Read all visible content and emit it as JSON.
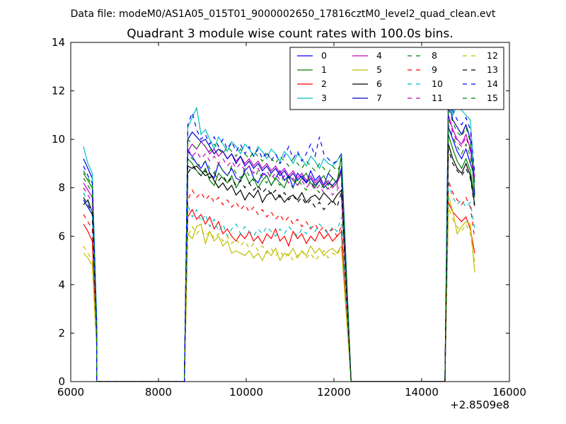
{
  "chart_data": {
    "type": "line",
    "suptitle": "Data file: modeM0/AS1A05_015T01_9000002650_17816cztM0_level2_quad_clean.evt",
    "title": "Quadrant 3 module wise count rates with 100.0s bins.",
    "xlabel": "",
    "ylabel": "",
    "xlim": [
      6000,
      16000
    ],
    "ylim": [
      0,
      14
    ],
    "x_offset_label": "+2.8509e8",
    "xticks": [
      6000,
      8000,
      10000,
      12000,
      14000,
      16000
    ],
    "yticks": [
      0,
      2,
      4,
      6,
      8,
      10,
      12,
      14
    ],
    "grid": false,
    "legend": {
      "location": "top-right",
      "columns": 4
    },
    "segments": [
      {
        "start": 6290,
        "step": 100,
        "count": 4,
        "drop_to_zero_at": 6590
      },
      {
        "start": 8670,
        "step": 100,
        "count": 36,
        "rise_from_zero_at": 8590,
        "drop_to_zero_at": 12390
      },
      {
        "start": 14610,
        "step": 100,
        "count": 7,
        "rise_from_zero_at": 14530
      }
    ],
    "zero_x": [
      6590,
      6700,
      6800,
      6900,
      7000,
      7100,
      7200,
      7300,
      7400,
      7500,
      7600,
      7700,
      7800,
      7900,
      8000,
      8100,
      8200,
      8300,
      8400,
      8500,
      8590,
      12390,
      12500,
      12600,
      12700,
      12800,
      12900,
      13000,
      13100,
      13200,
      13300,
      13400,
      13500,
      13600,
      13700,
      13800,
      13900,
      14000,
      14100,
      14200,
      14300,
      14400,
      14530
    ],
    "series": [
      {
        "name": "0",
        "color": "#0000ff",
        "dash": "solid",
        "y1": [
          9.2,
          8.8,
          8.4,
          2.5
        ],
        "y2": [
          9.5,
          9.3,
          9.0,
          8.8,
          9.1,
          8.6,
          8.4,
          9.0,
          8.7,
          8.5,
          8.8,
          8.4,
          8.3,
          8.7,
          8.9,
          8.4,
          8.2,
          8.6,
          8.5,
          8.1,
          8.4,
          8.7,
          8.3,
          8.5,
          8.0,
          8.6,
          8.4,
          8.2,
          8.7,
          8.3,
          8.5,
          8.1,
          8.6,
          8.4,
          8.2,
          8.8
        ],
        "y3": [
          10.5,
          10.0,
          9.5,
          9.2,
          9.6,
          9.0,
          8.5
        ]
      },
      {
        "name": "1",
        "color": "#008000",
        "dash": "solid",
        "y1": [
          8.6,
          8.3,
          8.0,
          2.2
        ],
        "y2": [
          9.2,
          9.0,
          8.7,
          8.5,
          8.8,
          8.3,
          8.1,
          8.6,
          8.4,
          8.2,
          8.5,
          8.0,
          8.3,
          8.6,
          8.2,
          8.4,
          8.0,
          8.3,
          8.5,
          8.1,
          8.4,
          8.2,
          8.0,
          8.5,
          8.3,
          8.1,
          8.4,
          8.6,
          8.2,
          8.0,
          8.3,
          8.5,
          8.1,
          8.4,
          8.2,
          9.3
        ],
        "y3": [
          10.2,
          9.6,
          9.1,
          8.8,
          9.2,
          8.7,
          7.6
        ]
      },
      {
        "name": "2",
        "color": "#ff0000",
        "dash": "solid",
        "y1": [
          6.5,
          6.2,
          5.8,
          1.8
        ],
        "y2": [
          6.8,
          7.1,
          6.7,
          6.9,
          6.5,
          6.8,
          6.3,
          6.6,
          6.1,
          6.3,
          6.0,
          5.8,
          6.1,
          5.9,
          6.2,
          5.8,
          6.0,
          5.7,
          6.1,
          5.9,
          6.3,
          5.8,
          6.0,
          5.6,
          6.2,
          5.9,
          6.1,
          5.7,
          6.0,
          5.8,
          6.2,
          5.9,
          6.1,
          5.8,
          6.0,
          6.2
        ],
        "y3": [
          7.4,
          7.0,
          6.8,
          6.6,
          6.8,
          6.3,
          5.3
        ]
      },
      {
        "name": "3",
        "color": "#00bfbf",
        "dash": "solid",
        "y1": [
          9.7,
          9.0,
          8.6,
          2.6
        ],
        "y2": [
          10.5,
          10.9,
          11.3,
          10.2,
          10.4,
          10.0,
          9.6,
          10.1,
          9.8,
          9.5,
          9.9,
          9.7,
          9.4,
          9.8,
          9.6,
          9.3,
          9.7,
          9.5,
          9.2,
          9.6,
          9.4,
          9.1,
          9.5,
          9.3,
          9.0,
          9.4,
          9.2,
          8.9,
          9.3,
          9.1,
          8.8,
          9.2,
          9.0,
          8.9,
          9.1,
          9.4
        ],
        "y3": [
          12.2,
          11.0,
          11.4,
          11.2,
          11.0,
          10.8,
          8.2
        ]
      },
      {
        "name": "4",
        "color": "#bf00bf",
        "dash": "solid",
        "y1": [
          8.2,
          7.9,
          7.6,
          2.1
        ],
        "y2": [
          9.5,
          9.8,
          9.6,
          9.9,
          9.7,
          9.4,
          9.6,
          9.3,
          9.5,
          9.2,
          9.4,
          9.1,
          9.3,
          9.0,
          9.2,
          8.9,
          9.1,
          8.8,
          9.0,
          8.7,
          8.9,
          8.6,
          8.8,
          8.5,
          8.7,
          8.4,
          8.6,
          8.3,
          8.5,
          8.2,
          8.4,
          8.1,
          8.3,
          8.0,
          8.2,
          8.6
        ],
        "y3": [
          11.0,
          10.4,
          10.0,
          9.8,
          10.2,
          9.6,
          8.4
        ]
      },
      {
        "name": "5",
        "color": "#bfbf00",
        "dash": "solid",
        "y1": [
          5.3,
          5.1,
          4.8,
          1.4
        ],
        "y2": [
          6.1,
          5.9,
          6.4,
          6.5,
          5.7,
          6.2,
          5.8,
          6.0,
          5.6,
          5.8,
          5.3,
          5.4,
          5.3,
          5.2,
          5.4,
          5.1,
          5.3,
          5.0,
          5.4,
          5.2,
          5.5,
          5.0,
          5.3,
          5.2,
          5.5,
          5.1,
          5.4,
          5.2,
          5.6,
          5.3,
          5.5,
          5.2,
          5.4,
          5.5,
          5.3,
          5.6
        ],
        "y3": [
          7.7,
          7.0,
          6.1,
          6.4,
          6.6,
          6.5,
          4.5
        ]
      },
      {
        "name": "6",
        "color": "#000000",
        "dash": "solid",
        "y1": [
          7.3,
          7.5,
          7.0,
          2.0
        ],
        "y2": [
          8.9,
          8.8,
          8.9,
          8.7,
          8.5,
          8.6,
          8.3,
          8.0,
          8.2,
          7.9,
          8.1,
          7.7,
          7.9,
          7.5,
          7.8,
          7.6,
          7.9,
          7.4,
          7.7,
          7.8,
          7.5,
          7.7,
          7.4,
          7.6,
          7.7,
          7.5,
          7.8,
          7.4,
          7.6,
          7.7,
          7.5,
          7.8,
          7.6,
          7.4,
          7.7,
          7.9
        ],
        "y3": [
          9.8,
          9.2,
          8.8,
          8.6,
          9.0,
          8.5,
          7.3
        ]
      },
      {
        "name": "7",
        "color": "#0000bf",
        "dash": "solid",
        "y1": [
          7.5,
          7.2,
          6.9,
          1.9
        ],
        "y2": [
          10.0,
          10.3,
          10.1,
          9.9,
          10.0,
          9.7,
          9.4,
          9.6,
          9.5,
          9.2,
          9.4,
          9.0,
          9.3,
          8.9,
          9.1,
          8.8,
          9.0,
          8.7,
          8.9,
          8.6,
          8.8,
          8.5,
          8.7,
          8.4,
          8.6,
          8.3,
          8.5,
          8.2,
          8.4,
          8.1,
          8.3,
          8.0,
          8.2,
          8.1,
          8.3,
          8.7
        ],
        "y3": [
          11.6,
          10.8,
          10.5,
          10.2,
          10.6,
          10.0,
          7.7
        ]
      },
      {
        "name": "8",
        "color": "#008000",
        "dash": "dashed",
        "y1": [
          8.4,
          8.1,
          7.8,
          2.3
        ],
        "y2": [
          9.4,
          9.2,
          9.0,
          8.9,
          9.1,
          8.8,
          8.6,
          9.0,
          8.7,
          8.5,
          8.9,
          8.6,
          8.4,
          8.8,
          8.5,
          8.3,
          8.7,
          8.4,
          8.2,
          8.6,
          8.3,
          8.1,
          8.5,
          8.2,
          8.0,
          8.4,
          8.1,
          7.9,
          8.3,
          8.0,
          7.8,
          8.2,
          7.9,
          8.1,
          8.0,
          9.4
        ],
        "y3": [
          10.6,
          10.1,
          9.7,
          9.4,
          9.8,
          9.3,
          7.9
        ]
      },
      {
        "name": "9",
        "color": "#ff0000",
        "dash": "dashed",
        "y1": [
          6.9,
          6.6,
          6.3,
          1.9
        ],
        "y2": [
          7.5,
          7.9,
          7.6,
          7.8,
          7.5,
          7.7,
          7.4,
          7.6,
          7.3,
          7.5,
          7.2,
          7.4,
          7.1,
          7.3,
          7.0,
          7.2,
          6.9,
          7.1,
          6.8,
          7.0,
          6.7,
          6.9,
          6.6,
          6.8,
          6.5,
          6.7,
          6.4,
          6.6,
          6.3,
          6.5,
          6.2,
          6.4,
          6.1,
          6.3,
          6.0,
          6.4
        ],
        "y3": [
          8.3,
          7.8,
          7.5,
          7.3,
          7.6,
          7.2,
          5.9
        ]
      },
      {
        "name": "10",
        "color": "#00bfbf",
        "dash": "dashed",
        "y1": [
          7.8,
          7.4,
          7.0,
          2.0
        ],
        "y2": [
          7.3,
          6.8,
          7.1,
          6.6,
          6.9,
          6.4,
          6.7,
          6.2,
          6.5,
          6.0,
          6.3,
          6.5,
          6.1,
          6.4,
          6.2,
          6.0,
          6.3,
          6.1,
          6.4,
          6.2,
          6.0,
          6.3,
          6.1,
          6.4,
          6.2,
          6.0,
          6.3,
          6.1,
          6.4,
          6.2,
          6.5,
          6.3,
          6.1,
          6.4,
          6.2,
          6.8
        ],
        "y3": [
          8.2,
          7.6,
          7.3,
          7.5,
          7.2,
          7.4,
          6.3
        ]
      },
      {
        "name": "11",
        "color": "#bf00bf",
        "dash": "dashed",
        "y1": [
          8.0,
          7.7,
          7.4,
          2.1
        ],
        "y2": [
          9.6,
          9.3,
          9.5,
          9.2,
          9.4,
          9.1,
          9.3,
          9.0,
          9.2,
          8.9,
          9.1,
          8.8,
          9.0,
          8.7,
          8.9,
          8.6,
          8.8,
          8.5,
          8.7,
          8.4,
          8.6,
          8.3,
          8.5,
          8.2,
          8.4,
          8.1,
          8.3,
          8.0,
          8.2,
          7.9,
          8.1,
          7.8,
          8.0,
          7.7,
          7.9,
          8.2
        ],
        "y3": [
          10.9,
          10.3,
          9.9,
          9.7,
          10.1,
          9.5,
          8.3
        ]
      },
      {
        "name": "12",
        "color": "#bfbf00",
        "dash": "dashed",
        "y1": [
          5.6,
          5.3,
          5.0,
          1.5
        ],
        "y2": [
          6.0,
          6.4,
          6.1,
          6.3,
          6.0,
          6.2,
          5.9,
          6.1,
          5.8,
          6.0,
          5.7,
          5.9,
          5.6,
          5.8,
          5.5,
          5.7,
          5.4,
          5.6,
          5.3,
          5.5,
          5.2,
          5.4,
          5.1,
          5.3,
          5.0,
          5.2,
          5.4,
          5.1,
          5.3,
          5.0,
          5.2,
          5.4,
          5.1,
          5.3,
          5.2,
          5.6
        ],
        "y3": [
          7.2,
          6.7,
          6.4,
          6.2,
          6.5,
          6.1,
          4.9
        ]
      },
      {
        "name": "13",
        "color": "#000000",
        "dash": "dashed",
        "y1": [
          7.6,
          7.3,
          7.0,
          2.0
        ],
        "y2": [
          8.6,
          8.9,
          8.7,
          8.5,
          8.7,
          8.4,
          8.6,
          8.3,
          8.5,
          8.2,
          8.4,
          8.1,
          8.3,
          8.0,
          8.2,
          7.9,
          8.1,
          7.8,
          8.0,
          7.7,
          7.9,
          7.6,
          7.8,
          7.5,
          7.7,
          7.4,
          7.6,
          7.3,
          7.5,
          7.2,
          7.4,
          7.1,
          7.3,
          7.5,
          7.2,
          7.8
        ],
        "y3": [
          9.6,
          9.0,
          8.7,
          8.5,
          8.8,
          8.4,
          7.2
        ]
      },
      {
        "name": "14",
        "color": "#0000ff",
        "dash": "dashed",
        "y1": [
          8.9,
          8.5,
          8.2,
          2.4
        ],
        "y2": [
          10.6,
          11.1,
          10.4,
          10.0,
          10.2,
          9.8,
          10.1,
          9.7,
          10.0,
          9.6,
          9.9,
          9.5,
          9.8,
          9.4,
          9.7,
          9.3,
          9.6,
          9.2,
          9.5,
          9.1,
          9.4,
          9.0,
          9.3,
          9.7,
          9.2,
          9.5,
          9.1,
          9.4,
          9.8,
          9.3,
          10.1,
          9.4,
          9.2,
          9.0,
          9.1,
          9.4
        ],
        "y3": [
          12.0,
          11.2,
          10.8,
          10.6,
          10.9,
          10.4,
          8.6
        ]
      },
      {
        "name": "15",
        "color": "#008000",
        "dash": "dashed",
        "y1": [
          8.7,
          8.4,
          8.1,
          2.3
        ],
        "y2": [
          10.0,
          9.8,
          9.6,
          9.9,
          9.7,
          9.5,
          9.8,
          9.6,
          9.4,
          9.7,
          9.5,
          9.3,
          9.6,
          9.4,
          9.2,
          9.5,
          9.3,
          9.1,
          9.4,
          9.2,
          9.0,
          9.3,
          9.1,
          8.9,
          9.2,
          9.0,
          8.8,
          9.1,
          8.9,
          8.7,
          9.0,
          8.8,
          8.6,
          8.9,
          8.7,
          9.0
        ],
        "y3": [
          11.3,
          10.7,
          10.3,
          10.1,
          10.5,
          9.9,
          8.1
        ]
      }
    ]
  }
}
